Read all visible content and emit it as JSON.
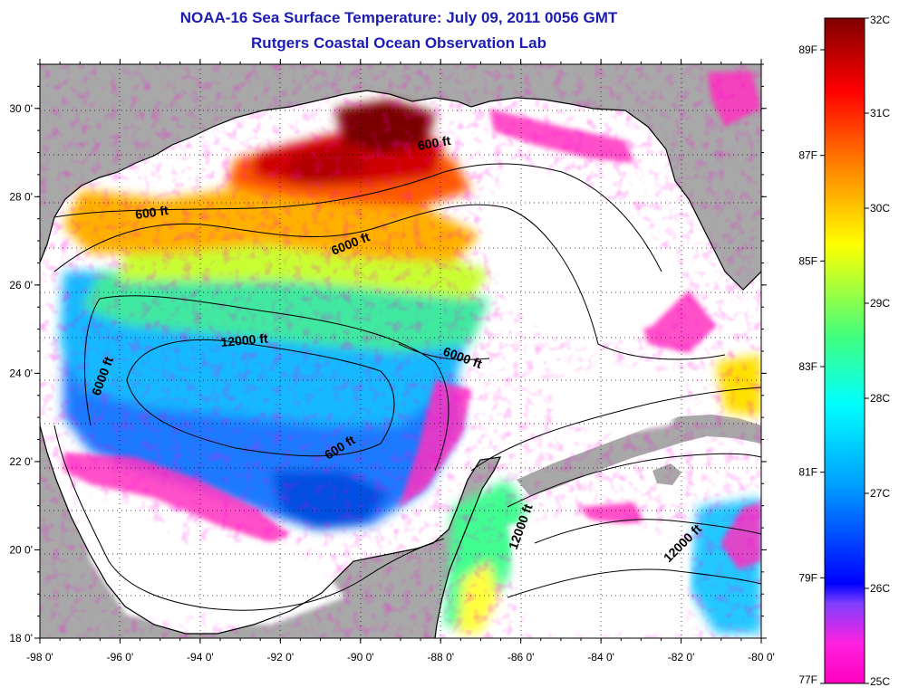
{
  "title": "NOAA-16 Sea Surface Temperature:  July 09, 2011 0056 GMT",
  "subtitle": "Rutgers Coastal Ocean Observation Lab",
  "map": {
    "lon_range": [
      -98,
      -80
    ],
    "lat_range": [
      18,
      31
    ],
    "x_ticks": [
      "-98 0'",
      "-96 0'",
      "-94 0'",
      "-92 0'",
      "-90 0'",
      "-88 0'",
      "-86 0'",
      "-84 0'",
      "-82 0'",
      "-80 0'"
    ],
    "y_ticks": [
      "18 0'",
      "20 0'",
      "22 0'",
      "24 0'",
      "26 0'",
      "28 0'",
      "30 0'"
    ],
    "grid": "dotted",
    "colors": {
      "land": "#a8a8a8",
      "no_data": "#ffffff"
    },
    "contour_labels": [
      "600 ft",
      "600 ft",
      "6000 ft",
      "12000 ft",
      "6000 ft",
      "6000 ft",
      "600 ft",
      "12000 ft",
      "12000 ft"
    ]
  },
  "colorbar": {
    "celsius": [
      "32C",
      "31C",
      "30C",
      "29C",
      "28C",
      "27C",
      "26C",
      "25C"
    ],
    "fahrenheit": [
      "89F",
      "87F",
      "85F",
      "83F",
      "81F",
      "79F",
      "77F"
    ],
    "colors": [
      "#ff00c0",
      "#8040ff",
      "#0000ff",
      "#00a0ff",
      "#00ffff",
      "#40ff80",
      "#ffff00",
      "#ff8000",
      "#ff0000",
      "#800000"
    ]
  }
}
